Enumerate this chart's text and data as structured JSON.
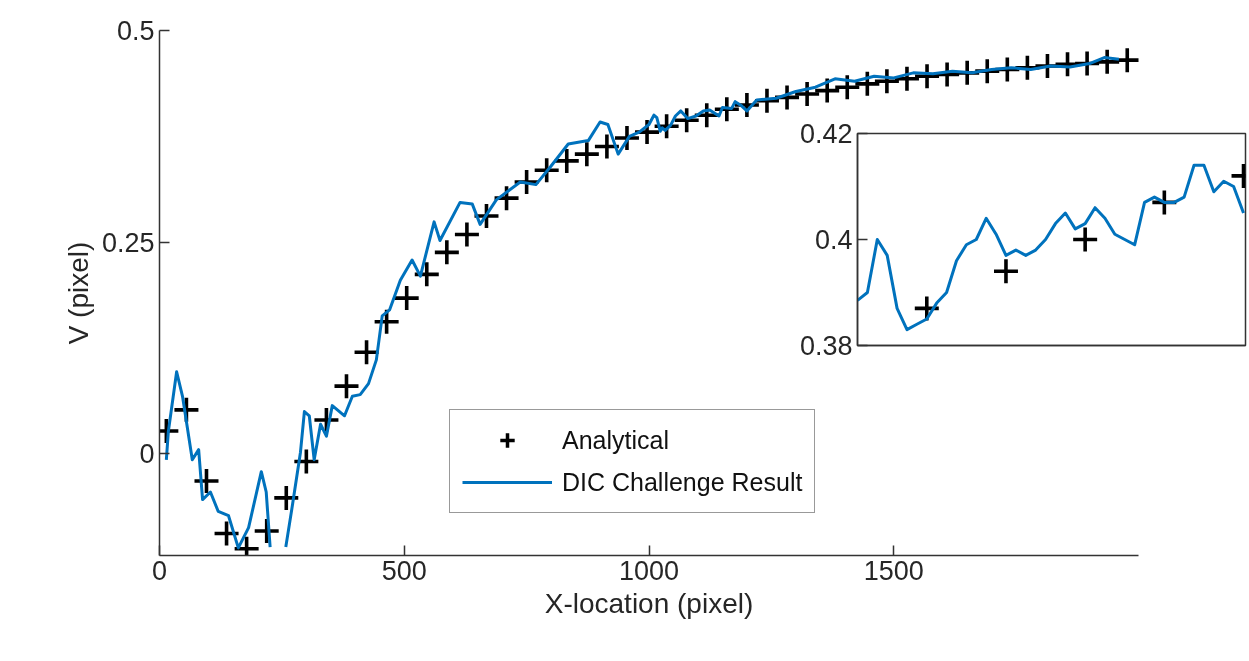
{
  "chart_data": [
    {
      "type": "line",
      "xlabel": "X-location (pixel)",
      "ylabel": "V (pixel)",
      "xlim": [
        0,
        2000
      ],
      "ylim": [
        -0.12,
        0.5
      ],
      "xticks": [
        0,
        500,
        1000,
        1500
      ],
      "yticks": [
        0,
        0.25,
        0.5
      ],
      "grid": false,
      "legend": "bottom",
      "series": [
        {
          "name": "Analytical",
          "type": "scatter",
          "marker": "cross",
          "color": "#000000",
          "x": [
            14,
            55,
            96,
            137,
            178,
            219,
            259,
            300,
            341,
            382,
            423,
            464,
            505,
            546,
            587,
            628,
            668,
            709,
            750,
            791,
            832,
            873,
            914,
            955,
            996,
            1036,
            1077,
            1118,
            1159,
            1200,
            1241,
            1282,
            1323,
            1364,
            1405,
            1446,
            1486,
            1527,
            1568,
            1609,
            1650,
            1691,
            1732,
            1773,
            1814,
            1855,
            1895,
            1936,
            1977
          ],
          "values": [
            0.027,
            0.052,
            -0.032,
            -0.094,
            -0.112,
            -0.091,
            -0.052,
            -0.009,
            0.04,
            0.08,
            0.12,
            0.156,
            0.184,
            0.212,
            0.238,
            0.259,
            0.281,
            0.302,
            0.321,
            0.335,
            0.346,
            0.354,
            0.363,
            0.373,
            0.38,
            0.387,
            0.394,
            0.4,
            0.407,
            0.412,
            0.417,
            0.421,
            0.425,
            0.429,
            0.433,
            0.437,
            0.44,
            0.443,
            0.446,
            0.448,
            0.45,
            0.452,
            0.454,
            0.456,
            0.458,
            0.46,
            0.461,
            0.463,
            0.465
          ]
        },
        {
          "name": "DIC Challenge Result",
          "color": "#0072bd",
          "x": [
            14,
            18,
            35,
            47,
            67,
            80,
            88,
            104,
            120,
            141,
            161,
            182,
            208,
            218,
            226,
            232,
            250,
            258,
            272,
            288,
            296,
            306,
            316,
            329,
            341,
            353,
            378,
            394,
            410,
            427,
            443,
            455,
            470,
            492,
            516,
            533,
            561,
            573,
            614,
            639,
            655,
            688,
            737,
            769,
            800,
            835,
            876,
            900,
            916,
            937,
            960,
            980,
            1000,
            1010,
            1016,
            1023,
            1027,
            1033,
            1044,
            1054,
            1065,
            1079,
            1096,
            1111,
            1124,
            1143,
            1150,
            1169,
            1176,
            1189,
            1200,
            1220,
            1260,
            1300,
            1340,
            1380,
            1420,
            1460,
            1500,
            1540,
            1580,
            1620,
            1660,
            1700,
            1740,
            1780,
            1820,
            1860,
            1900,
            1930,
            1960
          ],
          "values": [
            -0.007,
            0.026,
            0.097,
            0.068,
            -0.007,
            0.005,
            -0.054,
            -0.045,
            -0.068,
            -0.073,
            -0.111,
            -0.087,
            -0.021,
            -0.045,
            -0.11,
            null,
            null,
            -0.11,
            -0.059,
            0.002,
            0.05,
            0.045,
            -0.007,
            0.035,
            0.021,
            0.057,
            0.045,
            0.068,
            0.07,
            0.083,
            0.111,
            0.163,
            0.17,
            0.205,
            0.229,
            0.21,
            0.274,
            0.252,
            0.297,
            0.295,
            0.271,
            0.3,
            0.321,
            0.318,
            0.34,
            0.366,
            0.37,
            0.392,
            0.389,
            0.354,
            0.375,
            0.38,
            0.389,
            0.4,
            0.397,
            0.381,
            0.385,
            0.382,
            0.388,
            0.399,
            0.405,
            0.396,
            0.399,
            0.405,
            0.406,
            0.399,
            0.409,
            0.408,
            0.416,
            0.411,
            0.405,
            0.418,
            0.42,
            0.428,
            0.433,
            0.443,
            0.44,
            0.446,
            0.444,
            0.45,
            0.449,
            0.452,
            0.45,
            0.454,
            0.456,
            0.454,
            0.458,
            0.457,
            0.461,
            0.468,
            0.466
          ]
        }
      ]
    },
    {
      "type": "line",
      "categories": [
        null,
        null,
        null,
        null,
        null,
        null,
        null,
        null,
        null,
        null,
        null,
        null,
        null,
        null,
        null,
        null,
        null,
        null,
        null,
        null,
        null,
        null,
        null,
        null,
        null,
        null,
        null,
        null,
        null,
        null,
        null,
        null,
        null,
        null,
        null,
        null,
        null,
        null,
        null,
        null
      ],
      "ylim": [
        0.38,
        0.42
      ],
      "yticks": [
        0.38,
        0.4,
        0.42
      ],
      "tick_labels": "y",
      "grid": false,
      "series": [
        {
          "type": "scatter",
          "marker": "cross",
          "color": "#000000",
          "values": [
            null,
            null,
            null,
            null,
            null,
            null,
            null,
            0.387,
            null,
            null,
            null,
            null,
            null,
            null,
            null,
            0.394,
            null,
            null,
            null,
            null,
            null,
            null,
            null,
            0.4,
            null,
            null,
            null,
            null,
            null,
            null,
            null,
            0.407,
            null,
            null,
            null,
            null,
            null,
            null,
            null,
            0.412
          ]
        },
        {
          "color": "#0072bd",
          "values": [
            0.3885,
            0.39,
            0.4,
            0.397,
            0.387,
            0.383,
            0.384,
            0.385,
            0.388,
            0.39,
            0.396,
            0.399,
            0.4,
            0.404,
            0.401,
            0.397,
            0.398,
            0.397,
            0.398,
            0.4,
            0.403,
            0.405,
            0.402,
            0.403,
            0.406,
            0.404,
            0.401,
            0.4,
            0.399,
            0.407,
            0.408,
            0.407,
            0.407,
            0.408,
            0.414,
            0.414,
            0.409,
            0.411,
            0.41,
            0.405
          ]
        }
      ]
    }
  ]
}
